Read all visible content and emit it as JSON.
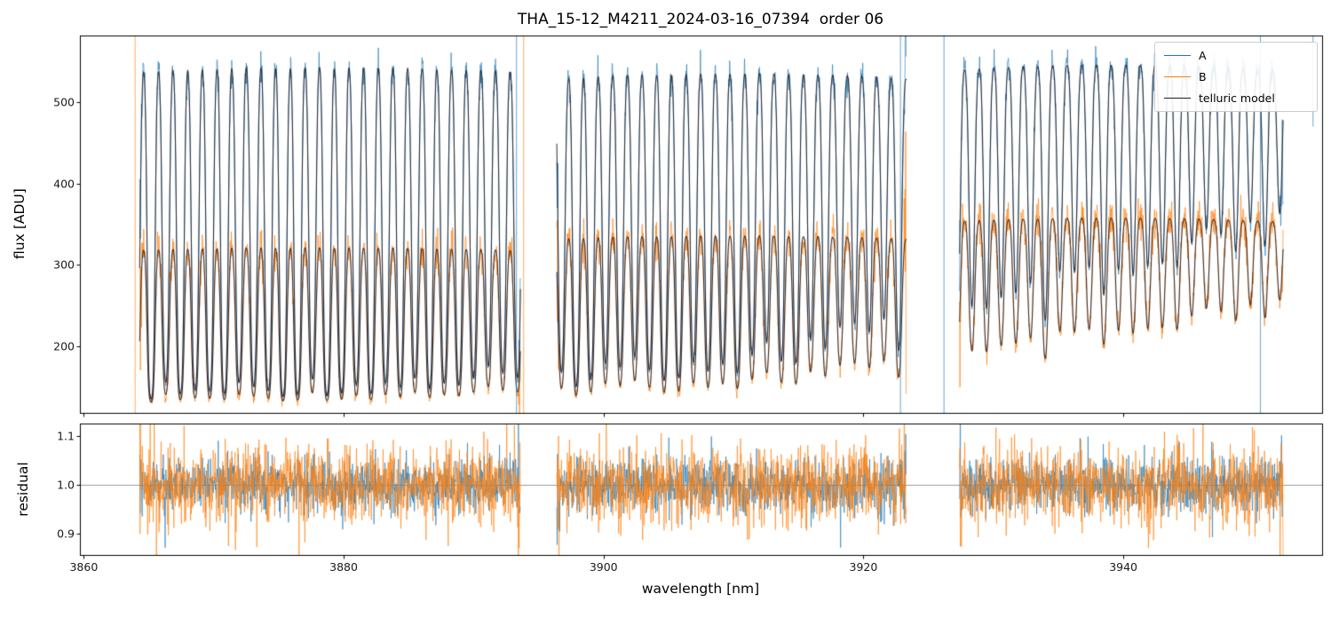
{
  "figure": {
    "title": "THA_15-12_M4211_2024-03-16_07394  order 06"
  },
  "chart_data": {
    "type": "line",
    "title": "THA_15-12_M4211_2024-03-16_07394  order 06",
    "xlabel": "wavelength [nm]",
    "xlim": [
      3859.7,
      3955.3
    ],
    "xticks": [
      {
        "v": 3860,
        "label": "3860"
      },
      {
        "v": 3880,
        "label": "3880"
      },
      {
        "v": 3900,
        "label": "3900"
      },
      {
        "v": 3920,
        "label": "3920"
      },
      {
        "v": 3940,
        "label": "3940"
      }
    ],
    "panels": [
      {
        "name": "flux",
        "ylabel": "flux [ADU]",
        "ylim": [
          118,
          582
        ],
        "yticks": [
          {
            "v": 200,
            "label": "200"
          },
          {
            "v": 300,
            "label": "300"
          },
          {
            "v": 400,
            "label": "400"
          },
          {
            "v": 500,
            "label": "500"
          }
        ]
      },
      {
        "name": "residual",
        "ylabel": "residual",
        "ylim": [
          0.856,
          1.126
        ],
        "yticks": [
          {
            "v": 0.9,
            "label": "0.9"
          },
          {
            "v": 1.0,
            "label": "1.0"
          },
          {
            "v": 1.1,
            "label": "1.1"
          }
        ],
        "gridline_y": 1.0
      }
    ],
    "legend": {
      "position": "upper right",
      "entries": [
        {
          "label": "A",
          "color": "#1f77b4"
        },
        {
          "label": "B",
          "color": "#ff7f0e"
        },
        {
          "label": "telluric model",
          "color": "#1c1c28"
        }
      ]
    },
    "series": [
      {
        "name": "A",
        "color": "#1f77b4",
        "alpha": 0.8,
        "noise": 9,
        "continuum": [
          548,
          537,
          544
        ]
      },
      {
        "name": "B",
        "color": "#ff7f0e",
        "alpha": 0.85,
        "noise": 13,
        "continuum": [
          323,
          336,
          356
        ]
      },
      {
        "name": "telluric model",
        "color": "#1c1c28",
        "alpha": 0.85
      }
    ],
    "segments": [
      [
        3864.3,
        3893.6
      ],
      [
        3896.4,
        3923.3
      ],
      [
        3927.4,
        3952.3
      ]
    ],
    "telluric": {
      "offset": 128,
      "line_start": 3864.05,
      "line_spacing": 1.128,
      "sigma": 0.17,
      "strength_start": 3.6,
      "strength_end": 0.55
    },
    "residual_noise": {
      "A": 0.028,
      "B": 0.04
    },
    "spikes": [
      {
        "x": 3863.95,
        "color": "#ff7f0e"
      },
      {
        "x": 3893.85,
        "color": "#ff7f0e"
      },
      {
        "x": 3893.3,
        "color": "#1f77b4"
      },
      {
        "x": 3922.85,
        "color": "#1f77b4"
      },
      {
        "x": 3926.2,
        "color": "#1f77b4"
      },
      {
        "x": 3950.55,
        "color": "#1f77b4"
      },
      {
        "x": 3954.6,
        "color": "#1f77b4",
        "y": [
          470,
          582
        ]
      }
    ],
    "seed": 7
  }
}
